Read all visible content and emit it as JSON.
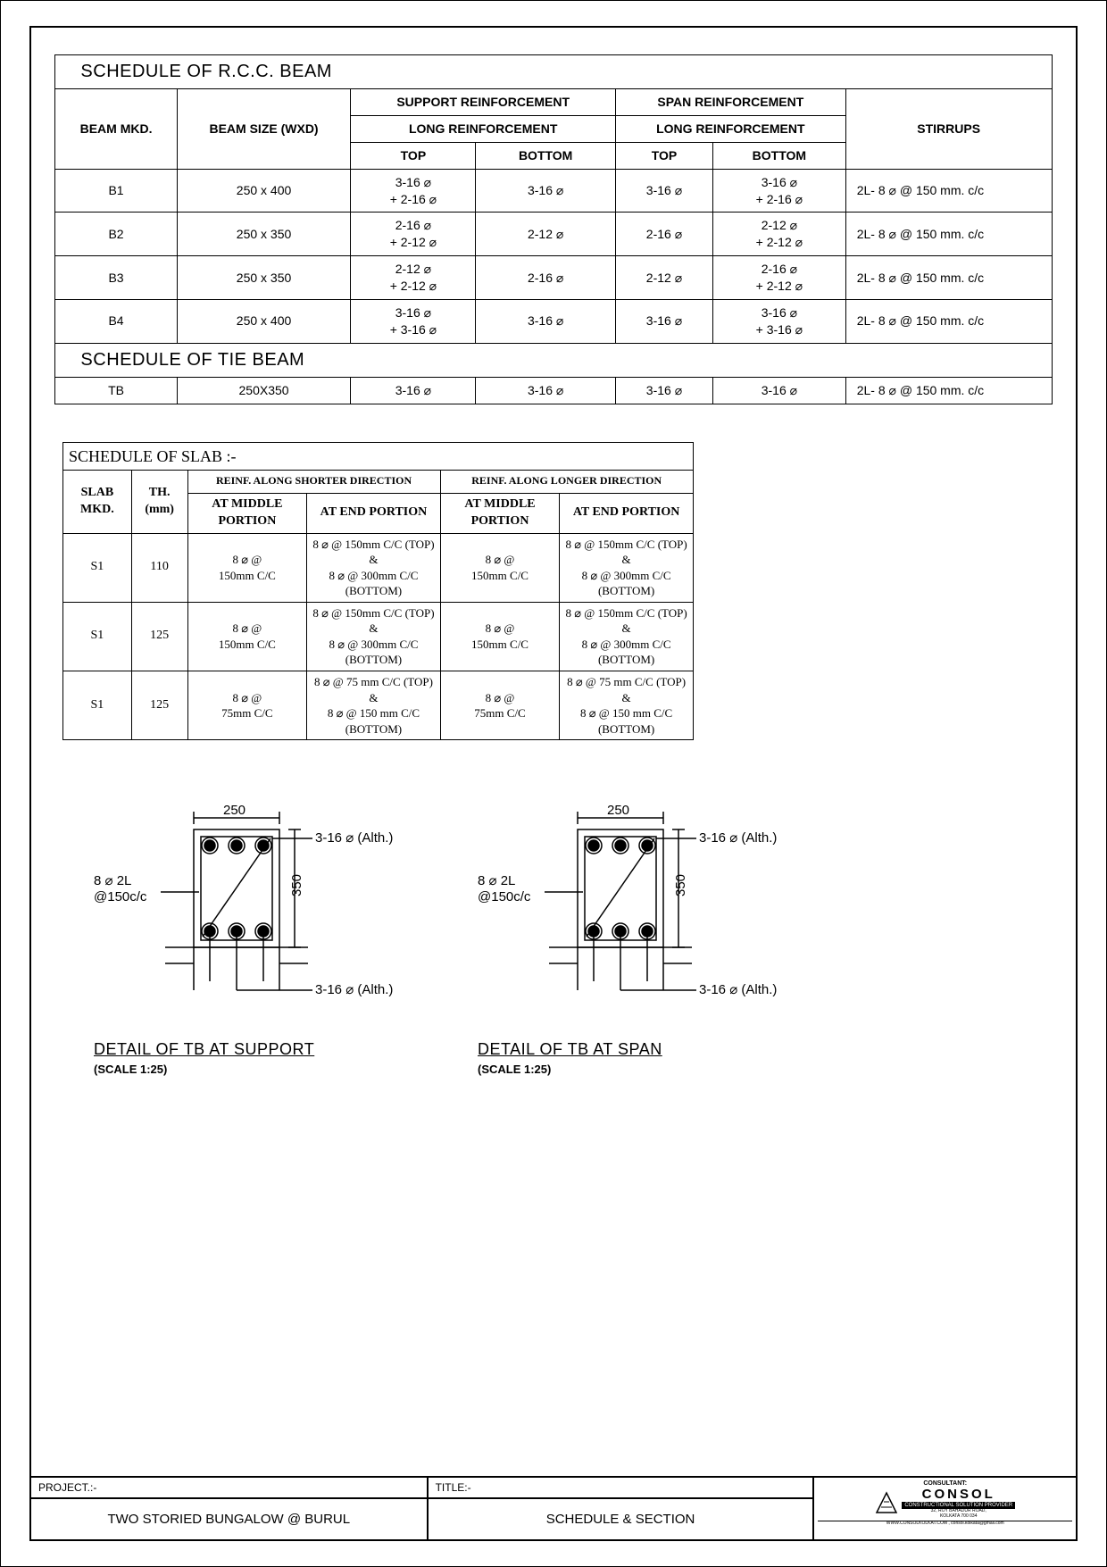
{
  "colors": {
    "line": "#000000",
    "bg": "#ffffff"
  },
  "beam_table": {
    "title": "SCHEDULE OF R.C.C. BEAM",
    "headers": {
      "beam_mkd": "BEAM MKD.",
      "beam_size": "BEAM SIZE (WXD)",
      "support": "SUPPORT REINFORCEMENT",
      "span": "SPAN REINFORCEMENT",
      "long": "LONG REINFORCEMENT",
      "top": "TOP",
      "bottom": "BOTTOM",
      "stirrups": "STIRRUPS"
    },
    "rows": [
      {
        "mkd": "B1",
        "size": "250 x 400",
        "s_top": "3-16 ⌀\n+ 2-16 ⌀",
        "s_bot": "3-16 ⌀",
        "sp_top": "3-16 ⌀",
        "sp_bot": "3-16 ⌀\n+ 2-16 ⌀",
        "stir": "2L- 8 ⌀ @ 150 mm. c/c"
      },
      {
        "mkd": "B2",
        "size": "250 x 350",
        "s_top": "2-16 ⌀\n+ 2-12 ⌀",
        "s_bot": "2-12 ⌀",
        "sp_top": "2-16 ⌀",
        "sp_bot": "2-12 ⌀\n+ 2-12 ⌀",
        "stir": "2L- 8 ⌀ @ 150 mm. c/c"
      },
      {
        "mkd": "B3",
        "size": "250 x 350",
        "s_top": "2-12 ⌀\n+ 2-12 ⌀",
        "s_bot": "2-16 ⌀",
        "sp_top": "2-12 ⌀",
        "sp_bot": "2-16 ⌀\n+ 2-12 ⌀",
        "stir": "2L- 8 ⌀ @ 150 mm. c/c"
      },
      {
        "mkd": "B4",
        "size": "250 x 400",
        "s_top": "3-16 ⌀\n+ 3-16 ⌀",
        "s_bot": "3-16 ⌀",
        "sp_top": "3-16 ⌀",
        "sp_bot": "3-16 ⌀\n+ 3-16 ⌀",
        "stir": "2L- 8 ⌀ @ 150 mm. c/c"
      }
    ],
    "tie_title": "SCHEDULE OF TIE BEAM",
    "tie_row": {
      "mkd": "TB",
      "size": "250X350",
      "s_top": "3-16 ⌀",
      "s_bot": "3-16 ⌀",
      "sp_top": "3-16 ⌀",
      "sp_bot": "3-16 ⌀",
      "stir": "2L- 8  ⌀ @ 150 mm. c/c"
    }
  },
  "slab_table": {
    "title": "SCHEDULE OF SLAB :-",
    "headers": {
      "slab_mkd": "SLAB MKD.",
      "th": "TH. (mm)",
      "shorter": "REINF. ALONG SHORTER DIRECTION",
      "longer": "REINF. ALONG LONGER DIRECTION",
      "at_mid": "AT MIDDLE PORTION",
      "at_end": "AT END PORTION"
    },
    "rows": [
      {
        "mkd": "S1",
        "th": "110",
        "s_mid": "8 ⌀ @ 150mm C/C",
        "s_end": "8 ⌀ @ 150mm C/C (TOP) &\n8 ⌀ @ 300mm C/C (BOTTOM)",
        "l_mid": "8 ⌀ @ 150mm C/C",
        "l_end": "8 ⌀ @ 150mm C/C (TOP) &\n8 ⌀ @ 300mm C/C (BOTTOM)"
      },
      {
        "mkd": "S1",
        "th": "125",
        "s_mid": "8 ⌀ @ 150mm C/C",
        "s_end": "8 ⌀ @ 150mm C/C (TOP) &\n8 ⌀ @ 300mm C/C (BOTTOM)",
        "l_mid": "8 ⌀ @ 150mm C/C",
        "l_end": "8 ⌀ @ 150mm C/C (TOP) &\n8 ⌀ @ 300mm C/C (BOTTOM)"
      },
      {
        "mkd": "S1",
        "th": "125",
        "s_mid": "8 ⌀ @ 75mm C/C",
        "s_end": "8 ⌀ @ 75 mm C/C (TOP) &\n8 ⌀ @ 150 mm C/C (BOTTOM)",
        "l_mid": "8 ⌀ @ 75mm C/C",
        "l_end": "8 ⌀ @ 75 mm C/C (TOP) &\n8 ⌀ @ 150 mm C/C (BOTTOM)"
      }
    ]
  },
  "diagrams": {
    "width_dim": "250",
    "height_dim": "350",
    "top_bars": "3-16 ⌀ (Alth.)",
    "bot_bars": "3-16 ⌀ (Alth.)",
    "stirrup_label": "8 ⌀ 2L @150c/c",
    "support_title": "DETAIL OF TB AT SUPPORT",
    "span_title": "DETAIL OF TB AT SPAN",
    "scale": "(SCALE 1:25)"
  },
  "title_block": {
    "project_label": "PROJECT.:-",
    "project_value": "TWO STORIED BUNGALOW @ BURUL",
    "title_label": "TITLE:-",
    "title_value": "SCHEDULE & SECTION",
    "consultant_label": "CONSULTANT:",
    "consol": "CONSOL",
    "consol_sub": "CONSTRUCTIONAL SOLUTION PROVIDER",
    "consol_addr1": "32, ROY BAHADUR ROAD,",
    "consol_addr2": "KOLKATA 700 034",
    "consol_web": "WWW.CONSOLKOLKAT.COM , consol.kolkata@gmail.com"
  }
}
